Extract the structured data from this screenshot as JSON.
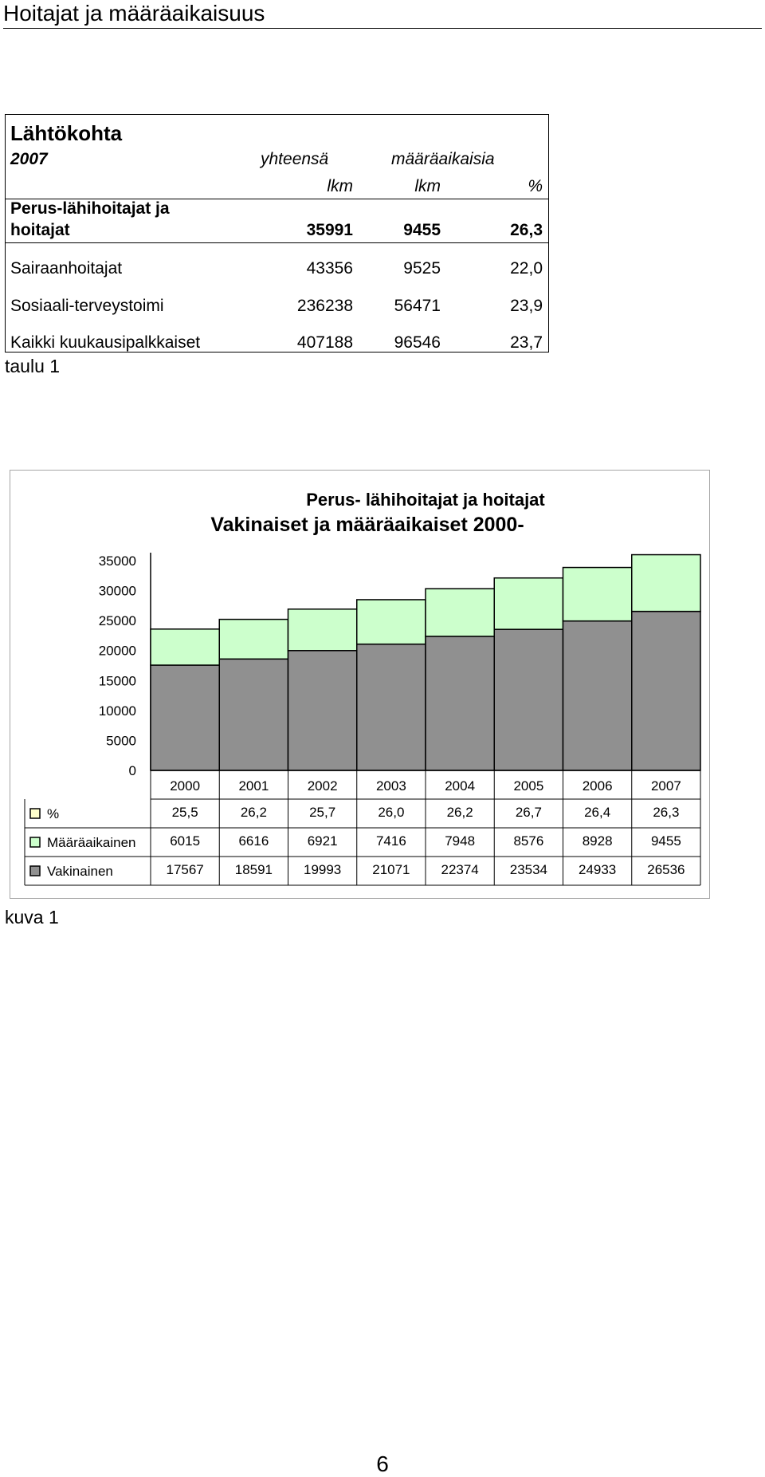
{
  "page": {
    "heading": "Hoitajat ja määräaikaisuus",
    "page_number": "6"
  },
  "table1": {
    "title": "Lähtökohta",
    "year": "2007",
    "col_total": "yhteensä",
    "col_fixed": "määräaikaisia",
    "unit_total": "lkm",
    "unit_fixed": "lkm",
    "unit_percent": "%",
    "rows": [
      {
        "label_line1": "Perus-lähihoitajat ja",
        "label_line2": "hoitajat",
        "total": "35991",
        "fixed": "9455",
        "percent": "26,3"
      },
      {
        "label": "Sairaanhoitajat",
        "total": "43356",
        "fixed": "9525",
        "percent": "22,0"
      },
      {
        "label": "Sosiaali-terveystoimi",
        "total": "236238",
        "fixed": "56471",
        "percent": "23,9"
      },
      {
        "label": "Kaikki kuukausipalkkaiset",
        "total": "407188",
        "fixed": "96546",
        "percent": "23,7"
      }
    ],
    "caption": "taulu 1"
  },
  "chart_data": {
    "type": "bar",
    "stacked": true,
    "title_line1": "Perus- lähihoitajat ja hoitajat",
    "title_line2": "Vakinaiset ja määräaikaiset 2000-",
    "categories": [
      "2000",
      "2001",
      "2002",
      "2003",
      "2004",
      "2005",
      "2006",
      "2007"
    ],
    "yticks": [
      0,
      5000,
      10000,
      15000,
      20000,
      25000,
      30000,
      35000
    ],
    "ylim": [
      0,
      35000
    ],
    "series": [
      {
        "name": "Vakinainen",
        "color": "#909090",
        "values": [
          17567,
          18591,
          19993,
          21071,
          22374,
          23534,
          24933,
          26536
        ]
      },
      {
        "name": "Määräaikainen",
        "color": "#ccffcc",
        "values": [
          6015,
          6616,
          6921,
          7416,
          7948,
          8576,
          8928,
          9455
        ]
      }
    ],
    "percent_row": {
      "name": "%",
      "values": [
        "25,5",
        "26,2",
        "25,7",
        "26,0",
        "26,2",
        "26,7",
        "26,4",
        "26,3"
      ]
    },
    "legend_placement": "data-table-bottom",
    "grid": false,
    "caption": "kuva 1"
  }
}
